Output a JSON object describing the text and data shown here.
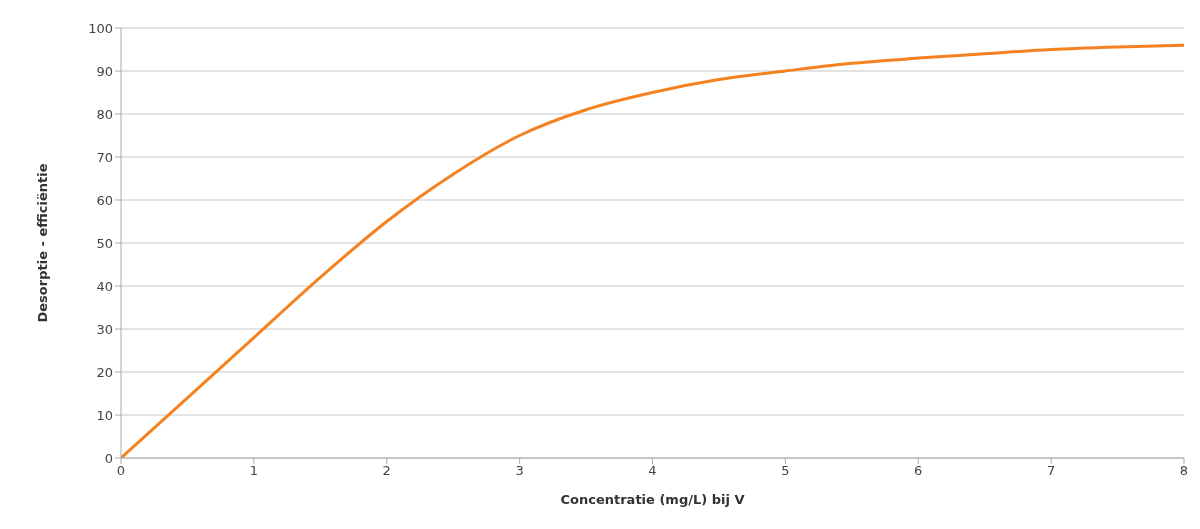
{
  "chart_data": {
    "type": "line",
    "xlabel": "Concentratie (mg/L) bij V",
    "ylabel": "Desorptie - efficiëntie",
    "x": [
      0,
      0.5,
      1,
      1.5,
      2,
      2.5,
      3,
      3.5,
      4,
      4.5,
      5,
      5.5,
      6,
      6.5,
      7,
      7.5,
      8
    ],
    "series": [
      {
        "color": "#f58220",
        "values": [
          0,
          14,
          28,
          42,
          55,
          66,
          75,
          81,
          85,
          88,
          90,
          91.8,
          93,
          94,
          95,
          95.6,
          96
        ]
      }
    ],
    "xlim": [
      0,
      8
    ],
    "xticks": [
      0,
      1,
      2,
      3,
      4,
      5,
      6,
      7,
      8
    ],
    "ylim": [
      0,
      100
    ],
    "yticks": [
      0,
      10,
      20,
      30,
      40,
      50,
      60,
      70,
      80,
      90,
      100
    ],
    "grid": "y",
    "legend": false,
    "marker": "none",
    "line_style": "solid"
  }
}
